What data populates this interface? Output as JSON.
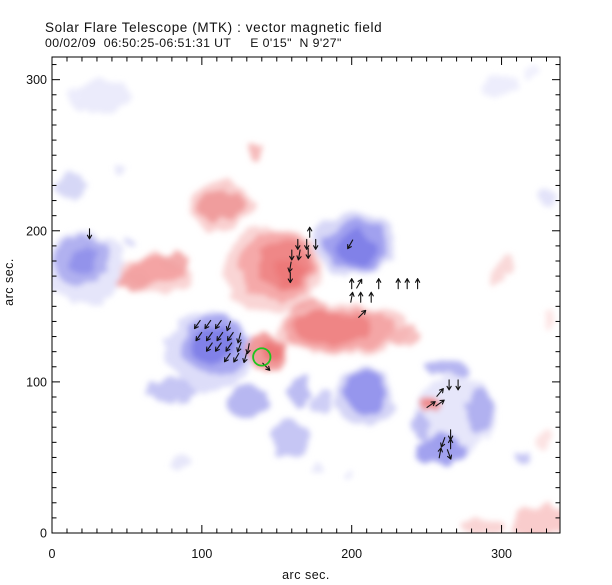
{
  "header": {
    "title": "Solar Flare Telescope (MTK) : vector magnetic field",
    "subtitle": "00/02/09  06:50:25-06:51:31 UT     E 0'15\"  N 9'27\""
  },
  "chart_data": {
    "type": "heatmap",
    "title": "Solar Flare Telescope (MTK) : vector magnetic field",
    "subtitle": "00/02/09  06:50:25-06:51:31 UT     E 0'15\"  N 9'27\"",
    "xlabel": "arc sec.",
    "ylabel": "arc sec.",
    "units": "arc sec",
    "xlim": [
      0,
      339
    ],
    "ylim": [
      0,
      315
    ],
    "x_major_ticks": [
      0,
      100,
      200,
      300
    ],
    "y_major_ticks": [
      0,
      100,
      200,
      300
    ],
    "minor_tick_step": 10,
    "grid": false,
    "colors": {
      "positive_polarity": "#ee8080",
      "negative_polarity": "#8080e8",
      "roi_circle": "#1ec41e",
      "vectors": "#111111",
      "axes": "#000000",
      "background": "#ffffff"
    },
    "roi_circle": {
      "x": 140,
      "y": 116.5,
      "r": 5.8
    },
    "blob_fields": [
      "x",
      "y",
      "rx",
      "ry",
      "color",
      "opacity",
      "rotation_deg"
    ],
    "polarity_blobs": [
      [
        32,
        289,
        20,
        10.5,
        "#e6e6fa",
        0.8
      ],
      [
        17,
        291,
        5.3,
        4,
        "#ececfc",
        0.8
      ],
      [
        13,
        229,
        10,
        8,
        "#cccdf4",
        0.8
      ],
      [
        45,
        242,
        4,
        3,
        "#dedef8",
        0.8
      ],
      [
        22,
        175,
        26.7,
        24,
        "#dcdcf8",
        0.75
      ],
      [
        20,
        180,
        18.7,
        16.5,
        "#a8a8ef",
        0.85
      ],
      [
        21,
        179,
        9.3,
        8.5,
        "#8f8fea",
        0.9
      ],
      [
        51,
        192,
        4.7,
        3.6,
        "#d4d4f6",
        0.9
      ],
      [
        105,
        120,
        30,
        26,
        "#d4d4f7",
        0.8
      ],
      [
        109,
        124,
        22,
        20,
        "#a2a2ee",
        0.9
      ],
      [
        107,
        124,
        14,
        12,
        "#8080e8",
        0.95
      ],
      [
        80,
        94,
        17.3,
        7.5,
        "#bcbcf2",
        0.85
      ],
      [
        130,
        87,
        14,
        11,
        "#aaaaef",
        0.85
      ],
      [
        202,
        192,
        27.3,
        21,
        "#d0d0f6",
        0.85
      ],
      [
        203,
        190,
        20.7,
        16.5,
        "#9c9cee",
        0.9
      ],
      [
        203,
        188,
        13.3,
        10.5,
        "#8080e8",
        0.95
      ],
      [
        209,
        90,
        20,
        20,
        "#ccccf5",
        0.85
      ],
      [
        209,
        93,
        14,
        14,
        "#9090ec",
        0.9
      ],
      [
        269,
        78,
        27.3,
        26,
        "#dedef8",
        0.75
      ],
      [
        264,
        109,
        14.7,
        6,
        "#a8a8ef",
        0.85
      ],
      [
        286,
        80,
        8.7,
        15,
        "#a8a8ef",
        0.85
      ],
      [
        259,
        55,
        17.3,
        10,
        "#9898ed",
        0.9
      ],
      [
        246,
        71,
        6,
        8.5,
        "#b4b4f1",
        0.85
      ],
      [
        314,
        50,
        5,
        4,
        "#bcbcf2",
        0.85
      ],
      [
        177,
        44,
        4,
        2.5,
        "#e2e2f9",
        0.8
      ],
      [
        199,
        37,
        4,
        2.5,
        "#e2e2f9",
        0.8
      ],
      [
        331,
        223,
        5,
        5.5,
        "#dcdcf7",
        0.8
      ],
      [
        299,
        296,
        13.3,
        6,
        "#e8e8fb",
        0.8
      ],
      [
        321,
        304,
        7.3,
        4.5,
        "#ececfc",
        0.8
      ],
      [
        86,
        47,
        6,
        4.5,
        "#e0e0f8",
        0.8
      ],
      [
        165,
        93,
        6.7,
        10.5,
        "#b0b0f0",
        0.85
      ],
      [
        180,
        86,
        7.3,
        7.5,
        "#c6c6f4",
        0.85
      ],
      [
        159,
        63,
        13.3,
        13,
        "#b8b8f1",
        0.8
      ],
      [
        137,
        252,
        4.7,
        6,
        "#f5b4b4",
        0.9
      ],
      [
        113,
        217,
        21.3,
        16,
        "#f8c8c8",
        0.85
      ],
      [
        113,
        217,
        16,
        9.5,
        "#f09898",
        0.9
      ],
      [
        147,
        174,
        32,
        29,
        "#f8caca",
        0.8
      ],
      [
        150,
        177,
        25.3,
        23,
        "#f4a4a4",
        0.9
      ],
      [
        155,
        178,
        17.3,
        16.5,
        "#ee8484",
        0.9
      ],
      [
        159,
        171,
        10.7,
        10,
        "#ec7878",
        0.9
      ],
      [
        144,
        120,
        13.3,
        12.5,
        "#f09090",
        0.9
      ],
      [
        147,
        120,
        8,
        6.6,
        "#ec7474",
        0.9
      ],
      [
        172,
        147,
        12,
        8,
        "#f2a0a0",
        0.85
      ],
      [
        69,
        171,
        25.3,
        12.5,
        "#f8cccc",
        0.85
      ],
      [
        69,
        173,
        18.7,
        8.6,
        "#f4a0a0",
        0.9
      ],
      [
        54,
        168,
        10.7,
        6,
        "#f2a2a2",
        0.9
      ],
      [
        83,
        180,
        10.7,
        6,
        "#f2a2a2",
        0.9
      ],
      [
        195,
        134,
        43.3,
        16.5,
        "#f8c8c8",
        0.85
      ],
      [
        191,
        134,
        36.7,
        14,
        "#f4a2a2",
        0.9
      ],
      [
        187,
        136,
        25.3,
        10.5,
        "#ee8282",
        0.9
      ],
      [
        235,
        130,
        12,
        6,
        "#f6b4b4",
        0.85
      ],
      [
        253,
        85,
        8.7,
        4.6,
        "#f09090",
        0.9
      ],
      [
        253,
        85,
        4.7,
        2.5,
        "#ee8080",
        0.95
      ],
      [
        326,
        8,
        20,
        10,
        "#f8c6c6",
        0.9
      ],
      [
        287,
        4,
        14.7,
        4.6,
        "#f8cccc",
        0.85
      ],
      [
        329,
        61,
        5.3,
        6.6,
        "#fbdcdc",
        0.8
      ],
      [
        332,
        141,
        4,
        5,
        "#fcdede",
        0.8
      ],
      [
        300,
        174,
        6,
        12,
        "#f8d2d2",
        0.85,
        30
      ]
    ],
    "vector_fields": [
      "x",
      "y",
      "direction_deg_cw_from_north"
    ],
    "field_vectors": [
      [
        25,
        198,
        180
      ],
      [
        97,
        138,
        215
      ],
      [
        104,
        138,
        215
      ],
      [
        111,
        138,
        215
      ],
      [
        118,
        137,
        200
      ],
      [
        98,
        130,
        215
      ],
      [
        105,
        130,
        215
      ],
      [
        112,
        130,
        215
      ],
      [
        119,
        130,
        215
      ],
      [
        125,
        129,
        195
      ],
      [
        105,
        123,
        215
      ],
      [
        111,
        123,
        215
      ],
      [
        118,
        123,
        215
      ],
      [
        125,
        123,
        200
      ],
      [
        131,
        122,
        190
      ],
      [
        117,
        116,
        215
      ],
      [
        123,
        116,
        210
      ],
      [
        129,
        116,
        195
      ],
      [
        143,
        110,
        135
      ],
      [
        172,
        199,
        0
      ],
      [
        164,
        191,
        180
      ],
      [
        170,
        191,
        180
      ],
      [
        176,
        191,
        180
      ],
      [
        160,
        184,
        180
      ],
      [
        165,
        184,
        190
      ],
      [
        171,
        185,
        180
      ],
      [
        159,
        176,
        190
      ],
      [
        159,
        169,
        180
      ],
      [
        199,
        191,
        210
      ],
      [
        200,
        165,
        0
      ],
      [
        205,
        165,
        30
      ],
      [
        218,
        165,
        0
      ],
      [
        231,
        165,
        0
      ],
      [
        237,
        165,
        0
      ],
      [
        244,
        165,
        0
      ],
      [
        200,
        156,
        10
      ],
      [
        206,
        156,
        0
      ],
      [
        213,
        156,
        0
      ],
      [
        207,
        145,
        45
      ],
      [
        265,
        98,
        180
      ],
      [
        271,
        98,
        180
      ],
      [
        259,
        93,
        40
      ],
      [
        253,
        85,
        55
      ],
      [
        259,
        86,
        55
      ],
      [
        266,
        65,
        180
      ],
      [
        261,
        60,
        200
      ],
      [
        266,
        59,
        0
      ],
      [
        259,
        53,
        10
      ],
      [
        265,
        52,
        160
      ]
    ]
  }
}
